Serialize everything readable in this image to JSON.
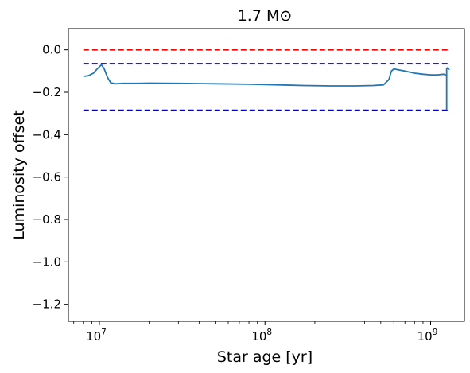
{
  "chart_data": {
    "type": "line",
    "title": "1.7 M⊙",
    "xlabel": "Star age [yr]",
    "ylabel": "Luminosity offset",
    "x_scale": "log",
    "xlim": [
      6500000,
      1600000000
    ],
    "ylim": [
      -1.28,
      0.1
    ],
    "x_major_ticks": [
      {
        "value": 10000000,
        "base": "10",
        "exp": "7"
      },
      {
        "value": 100000000,
        "base": "10",
        "exp": "8"
      },
      {
        "value": 1000000000,
        "base": "10",
        "exp": "9"
      }
    ],
    "y_ticks": [
      0.0,
      -0.2,
      -0.4,
      -0.6,
      -0.8,
      -1.0,
      -1.2
    ],
    "y_tick_labels": [
      "0.0",
      "−0.2",
      "−0.4",
      "−0.6",
      "−0.8",
      "−1.0",
      "−1.2"
    ],
    "grid": false,
    "legend": false,
    "reference_lines": [
      {
        "y": 0.0,
        "x_range": [
          8000000,
          1300000000
        ],
        "color": "#ff0000",
        "style": "dashed"
      },
      {
        "y": -0.065,
        "x_range": [
          8000000,
          1300000000
        ],
        "color": "#0000cc",
        "style": "dashed"
      },
      {
        "y": -0.285,
        "x_range": [
          8000000,
          1300000000
        ],
        "color": "#0000cc",
        "style": "dashed"
      }
    ],
    "series": [
      {
        "color": "#1f77b4",
        "x": [
          8000000,
          8600000,
          9200000,
          9700000,
          10300000,
          10700000,
          11200000,
          11700000,
          12500000,
          14000000,
          17000000,
          20000000,
          30000000,
          50000000,
          80000000,
          120000000,
          170000000,
          250000000,
          350000000,
          450000000,
          520000000,
          560000000,
          580000000,
          600000000,
          620000000,
          700000000,
          800000000,
          900000000,
          1000000000,
          1100000000,
          1200000000,
          1250000000,
          1250000000,
          1250000000,
          1260000000,
          1280000000,
          1300000000
        ],
        "y": [
          -0.125,
          -0.122,
          -0.11,
          -0.09,
          -0.07,
          -0.09,
          -0.13,
          -0.155,
          -0.16,
          -0.158,
          -0.158,
          -0.157,
          -0.158,
          -0.16,
          -0.162,
          -0.165,
          -0.168,
          -0.17,
          -0.17,
          -0.168,
          -0.165,
          -0.14,
          -0.1,
          -0.09,
          -0.092,
          -0.1,
          -0.11,
          -0.115,
          -0.118,
          -0.118,
          -0.115,
          -0.12,
          -0.28,
          -0.09,
          -0.085,
          -0.09,
          -0.095
        ]
      }
    ]
  }
}
